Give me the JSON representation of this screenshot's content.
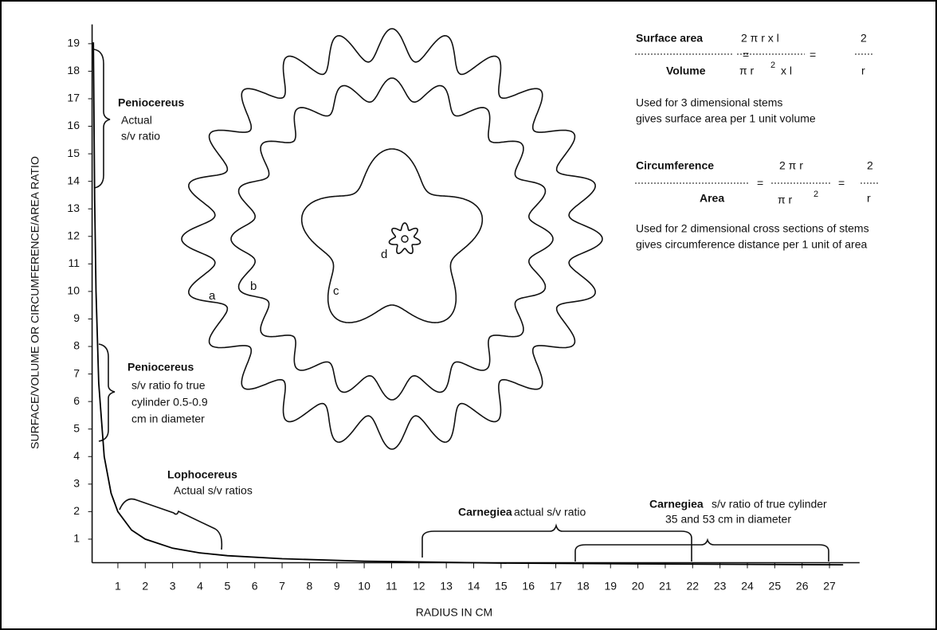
{
  "chart_data": {
    "type": "line",
    "x_label": "RADIUS IN CM",
    "y_label": "SURFACE/VOLUME OR CIRCUMFERENCE/AREA RATIO",
    "x": [
      0.105,
      0.15,
      0.2,
      0.3,
      0.5,
      0.75,
      1,
      1.5,
      2,
      3,
      4,
      5,
      7,
      10,
      15,
      20,
      27.5
    ],
    "values": [
      19.05,
      13.33,
      10,
      6.67,
      4,
      2.67,
      2,
      1.33,
      1,
      0.67,
      0.5,
      0.4,
      0.29,
      0.2,
      0.13,
      0.1,
      0.07
    ],
    "color": "#000000",
    "xlim": [
      0,
      28.1
    ],
    "ylim": [
      0,
      19.7
    ],
    "xticks": [
      1,
      2,
      3,
      4,
      5,
      6,
      7,
      8,
      9,
      10,
      11,
      12,
      13,
      14,
      15,
      16,
      17,
      18,
      19,
      20,
      21,
      22,
      23,
      24,
      25,
      26,
      27
    ],
    "yticks": [
      1,
      2,
      3,
      4,
      5,
      6,
      7,
      8,
      9,
      10,
      11,
      12,
      13,
      14,
      15,
      16,
      17,
      18,
      19
    ],
    "annotations": [
      "Peniocereus",
      "Actual",
      "s/v ratio",
      "Peniocereus",
      "s/v ratio fo true",
      "cylinder 0.5-0.9",
      "cm in diameter",
      "Lophocereus",
      "Actual s/v ratios",
      "Carnegiea",
      "actual s/v ratio",
      "Carnegiea",
      "s/v ratio of true cylinder",
      "35 and 53 cm in diameter",
      "a",
      "b",
      "c",
      "d",
      "Surface area",
      "Volume",
      "=",
      "2 π r x l",
      "π r",
      "2",
      "x l",
      "=",
      "2",
      "r",
      "Used for 3 dimensional stems",
      "gives surface area per 1 unit volume",
      "Circumference",
      "Area",
      "=",
      "2 π r",
      "π r",
      "2",
      "=",
      "2",
      "r",
      "Used for 2 dimensional cross sections of stems",
      "gives circumference distance per 1 unit of area"
    ]
  }
}
